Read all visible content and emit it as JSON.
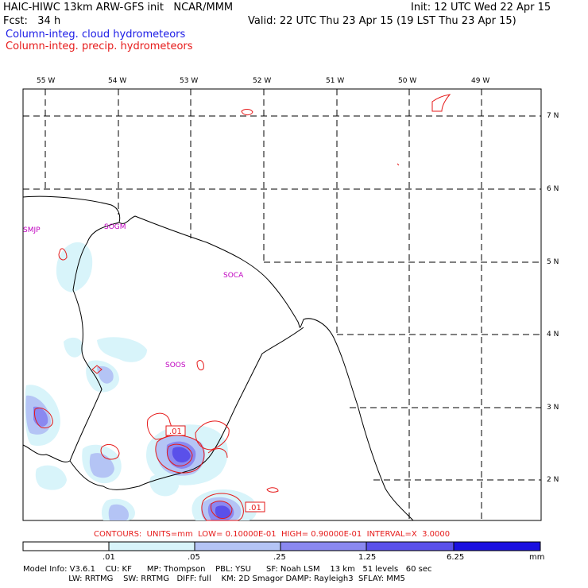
{
  "header": {
    "title_left": "HAIC-HIWC 13km ARW-GFS init   NCAR/MMM",
    "init": "Init: 12 UTC Wed 22 Apr 15",
    "fcst": "Fcst:   34 h",
    "valid": "Valid: 22 UTC Thu 23 Apr 15 (19 LST Thu 23 Apr 15)",
    "field_cloud": "Column-integ. cloud hydrometeors",
    "field_precip": "Column-integ. precip. hydrometeors"
  },
  "map": {
    "lon_labels": [
      "55 W",
      "54 W",
      "53 W",
      "52 W",
      "51 W",
      "50 W",
      "49 W"
    ],
    "lat_labels": [
      "7 N",
      "6 N",
      "5 N",
      "4 N",
      "3 N",
      "2 N"
    ],
    "stations": [
      "SMJP",
      "SOGM",
      "SOCA",
      "SOOS"
    ],
    "contour_labels": [
      ".01",
      ".01"
    ]
  },
  "contours_line": "CONTOURS:  UNITS=mm  LOW= 0.10000E-01  HIGH= 0.90000E-01  INTERVAL=X  3.0000",
  "colorbar": {
    "labels": [
      ".01",
      ".05",
      ".25",
      "1.25",
      "6.25"
    ],
    "units": "mm",
    "colors": [
      "#ffffff",
      "#d8f4fa",
      "#b4c4f5",
      "#8a88f0",
      "#5a50ea",
      "#1a10e0"
    ]
  },
  "model_info": {
    "line1": "Model Info: V3.6.1    CU: KF      MP: Thompson    PBL: YSU      SF: Noah LSM    13 km   51 levels   60 sec",
    "line2": "                  LW: RRTMG    SW: RRTMG   DIFF: full    KM: 2D Smagor DAMP: Rayleigh3  SFLAY: MM5"
  }
}
